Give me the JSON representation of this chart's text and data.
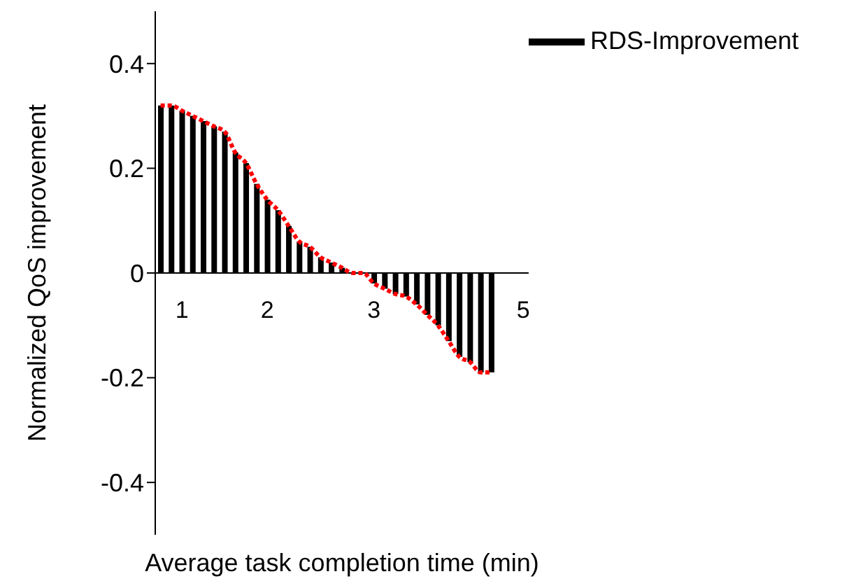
{
  "chart_data": {
    "type": "bar",
    "xlabel": "Average task completion time (min)",
    "ylabel": "Normalized QoS improvement",
    "categories": [
      null,
      null,
      "1",
      null,
      null,
      null,
      null,
      null,
      null,
      null,
      "2",
      null,
      null,
      null,
      null,
      null,
      null,
      null,
      null,
      null,
      "3",
      null,
      null,
      null,
      null,
      null,
      null,
      null,
      null,
      null,
      null,
      null,
      null,
      null,
      "5"
    ],
    "series": [
      {
        "name": "RDS-Improvement",
        "color": "#000000",
        "values": [
          0.32,
          0.32,
          0.31,
          0.3,
          0.29,
          0.28,
          0.27,
          0.23,
          0.21,
          0.17,
          0.14,
          0.12,
          0.09,
          0.06,
          0.05,
          0.03,
          0.02,
          0.01,
          0.0,
          0.0,
          -0.02,
          -0.03,
          -0.04,
          -0.045,
          -0.06,
          -0.08,
          -0.1,
          -0.13,
          -0.16,
          -0.17,
          -0.19,
          -0.19,
          null,
          null,
          null
        ]
      },
      {
        "type": "line",
        "color": "#ff0000",
        "line_style": "dotted",
        "values": [
          0.32,
          0.32,
          0.31,
          0.3,
          0.29,
          0.28,
          0.27,
          0.23,
          0.21,
          0.17,
          0.14,
          0.12,
          0.09,
          0.06,
          0.05,
          0.03,
          0.02,
          0.01,
          0.0,
          0.0,
          -0.02,
          -0.03,
          -0.04,
          -0.045,
          -0.06,
          -0.08,
          -0.1,
          -0.13,
          -0.16,
          -0.17,
          -0.19,
          -0.19,
          null,
          null,
          null
        ]
      }
    ],
    "ylim": [
      -0.5,
      0.5
    ],
    "yticks": [
      -0.4,
      -0.2,
      0,
      0.2,
      0.4
    ],
    "grid": false,
    "legend": "top right",
    "marker": "none"
  }
}
